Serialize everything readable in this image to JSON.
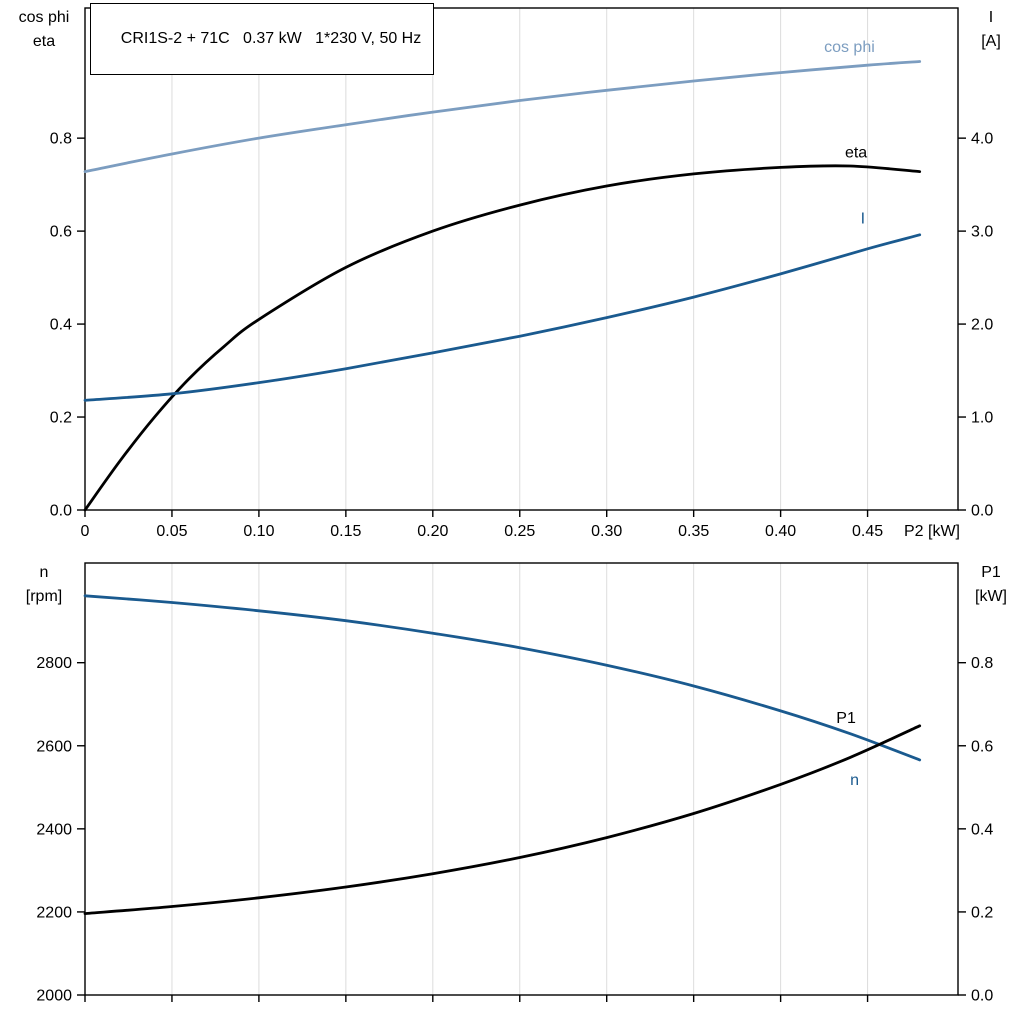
{
  "title_box": {
    "text": "CRI1S-2 + 71C   0.37 kW   1*230 V, 50 Hz"
  },
  "colors": {
    "light_blue": "#7C9DC0",
    "dark_blue": "#1A5A8F",
    "black": "#000000",
    "grid": "#DCDCDC",
    "frame": "#000000"
  },
  "chart_data": [
    {
      "type": "line",
      "name": "motor-curves-cosphi-eta-current",
      "x_axis": {
        "label": "P2 [kW]",
        "min": 0,
        "max": 0.502,
        "ticks": [
          0,
          0.05,
          0.1,
          0.15,
          0.2,
          0.25,
          0.3,
          0.35,
          0.4,
          0.45
        ],
        "tick_labels": [
          "0",
          "0.05",
          "0.10",
          "0.15",
          "0.20",
          "0.25",
          "0.30",
          "0.35",
          "0.40",
          "0.45"
        ]
      },
      "left_axis": {
        "title_lines": [
          "cos phi",
          "eta"
        ],
        "min": 0,
        "max": 1.08,
        "ticks": [
          0,
          0.2,
          0.4,
          0.6,
          0.8
        ],
        "tick_labels": [
          "0.0",
          "0.2",
          "0.4",
          "0.6",
          "0.8"
        ]
      },
      "right_axis": {
        "title_lines": [
          "I",
          "[A]"
        ],
        "min": 0,
        "max": 5.4,
        "ticks": [
          0,
          1,
          2,
          3,
          4
        ],
        "tick_labels": [
          "0.0",
          "1.0",
          "2.0",
          "3.0",
          "4.0"
        ]
      },
      "series": [
        {
          "name": "cos-phi",
          "axis": "left",
          "color": "light_blue",
          "label": {
            "text": "cos phi",
            "x": 0.425,
            "y": 0.985
          },
          "points": [
            [
              0,
              0.728
            ],
            [
              0.05,
              0.766
            ],
            [
              0.1,
              0.8
            ],
            [
              0.15,
              0.829
            ],
            [
              0.2,
              0.856
            ],
            [
              0.25,
              0.881
            ],
            [
              0.3,
              0.903
            ],
            [
              0.35,
              0.923
            ],
            [
              0.4,
              0.941
            ],
            [
              0.45,
              0.957
            ],
            [
              0.48,
              0.965
            ]
          ]
        },
        {
          "name": "eta",
          "axis": "left",
          "color": "black",
          "label": {
            "text": "eta",
            "x": 0.437,
            "y": 0.758
          },
          "points": [
            [
              0,
              0
            ],
            [
              0.02,
              0.105
            ],
            [
              0.04,
              0.2
            ],
            [
              0.06,
              0.283
            ],
            [
              0.08,
              0.352
            ],
            [
              0.1,
              0.41
            ],
            [
              0.15,
              0.522
            ],
            [
              0.2,
              0.6
            ],
            [
              0.25,
              0.656
            ],
            [
              0.3,
              0.697
            ],
            [
              0.35,
              0.723
            ],
            [
              0.4,
              0.737
            ],
            [
              0.44,
              0.74
            ],
            [
              0.48,
              0.728
            ]
          ]
        },
        {
          "name": "I",
          "axis": "right",
          "color": "dark_blue",
          "label": {
            "text": "I",
            "x": 0.446,
            "y": 3.08
          },
          "points": [
            [
              0,
              1.18
            ],
            [
              0.05,
              1.25
            ],
            [
              0.1,
              1.37
            ],
            [
              0.15,
              1.52
            ],
            [
              0.2,
              1.69
            ],
            [
              0.25,
              1.87
            ],
            [
              0.3,
              2.07
            ],
            [
              0.35,
              2.29
            ],
            [
              0.4,
              2.54
            ],
            [
              0.45,
              2.81
            ],
            [
              0.48,
              2.96
            ]
          ]
        }
      ]
    },
    {
      "type": "line",
      "name": "motor-curves-speed-power",
      "x_axis": {
        "label": "",
        "min": 0,
        "max": 0.502,
        "ticks": [
          0,
          0.05,
          0.1,
          0.15,
          0.2,
          0.25,
          0.3,
          0.35,
          0.4,
          0.45
        ],
        "tick_labels": []
      },
      "left_axis": {
        "title_lines": [
          "n",
          "[rpm]"
        ],
        "min": 2000,
        "max": 3040,
        "ticks": [
          2000,
          2200,
          2400,
          2600,
          2800
        ],
        "tick_labels": [
          "2000",
          "2200",
          "2400",
          "2600",
          "2800"
        ]
      },
      "right_axis": {
        "title_lines": [
          "P1",
          "[kW]"
        ],
        "min": 0,
        "max": 1.04,
        "ticks": [
          0,
          0.2,
          0.4,
          0.6,
          0.8
        ],
        "tick_labels": [
          "0.0",
          "0.2",
          "0.4",
          "0.6",
          "0.8"
        ]
      },
      "series": [
        {
          "name": "n",
          "axis": "left",
          "color": "dark_blue",
          "label": {
            "text": "n",
            "x": 0.44,
            "y": 2505
          },
          "points": [
            [
              0,
              2961
            ],
            [
              0.05,
              2945
            ],
            [
              0.1,
              2925
            ],
            [
              0.15,
              2901
            ],
            [
              0.2,
              2871
            ],
            [
              0.25,
              2836
            ],
            [
              0.3,
              2794
            ],
            [
              0.35,
              2744
            ],
            [
              0.4,
              2684
            ],
            [
              0.44,
              2629
            ],
            [
              0.48,
              2566
            ]
          ]
        },
        {
          "name": "P1",
          "axis": "right",
          "color": "black",
          "label": {
            "text": "P1",
            "x": 0.432,
            "y": 0.655
          },
          "points": [
            [
              0,
              0.196
            ],
            [
              0.05,
              0.213
            ],
            [
              0.1,
              0.234
            ],
            [
              0.15,
              0.26
            ],
            [
              0.2,
              0.292
            ],
            [
              0.25,
              0.331
            ],
            [
              0.3,
              0.379
            ],
            [
              0.35,
              0.437
            ],
            [
              0.4,
              0.507
            ],
            [
              0.44,
              0.572
            ],
            [
              0.48,
              0.648
            ]
          ]
        }
      ]
    }
  ]
}
